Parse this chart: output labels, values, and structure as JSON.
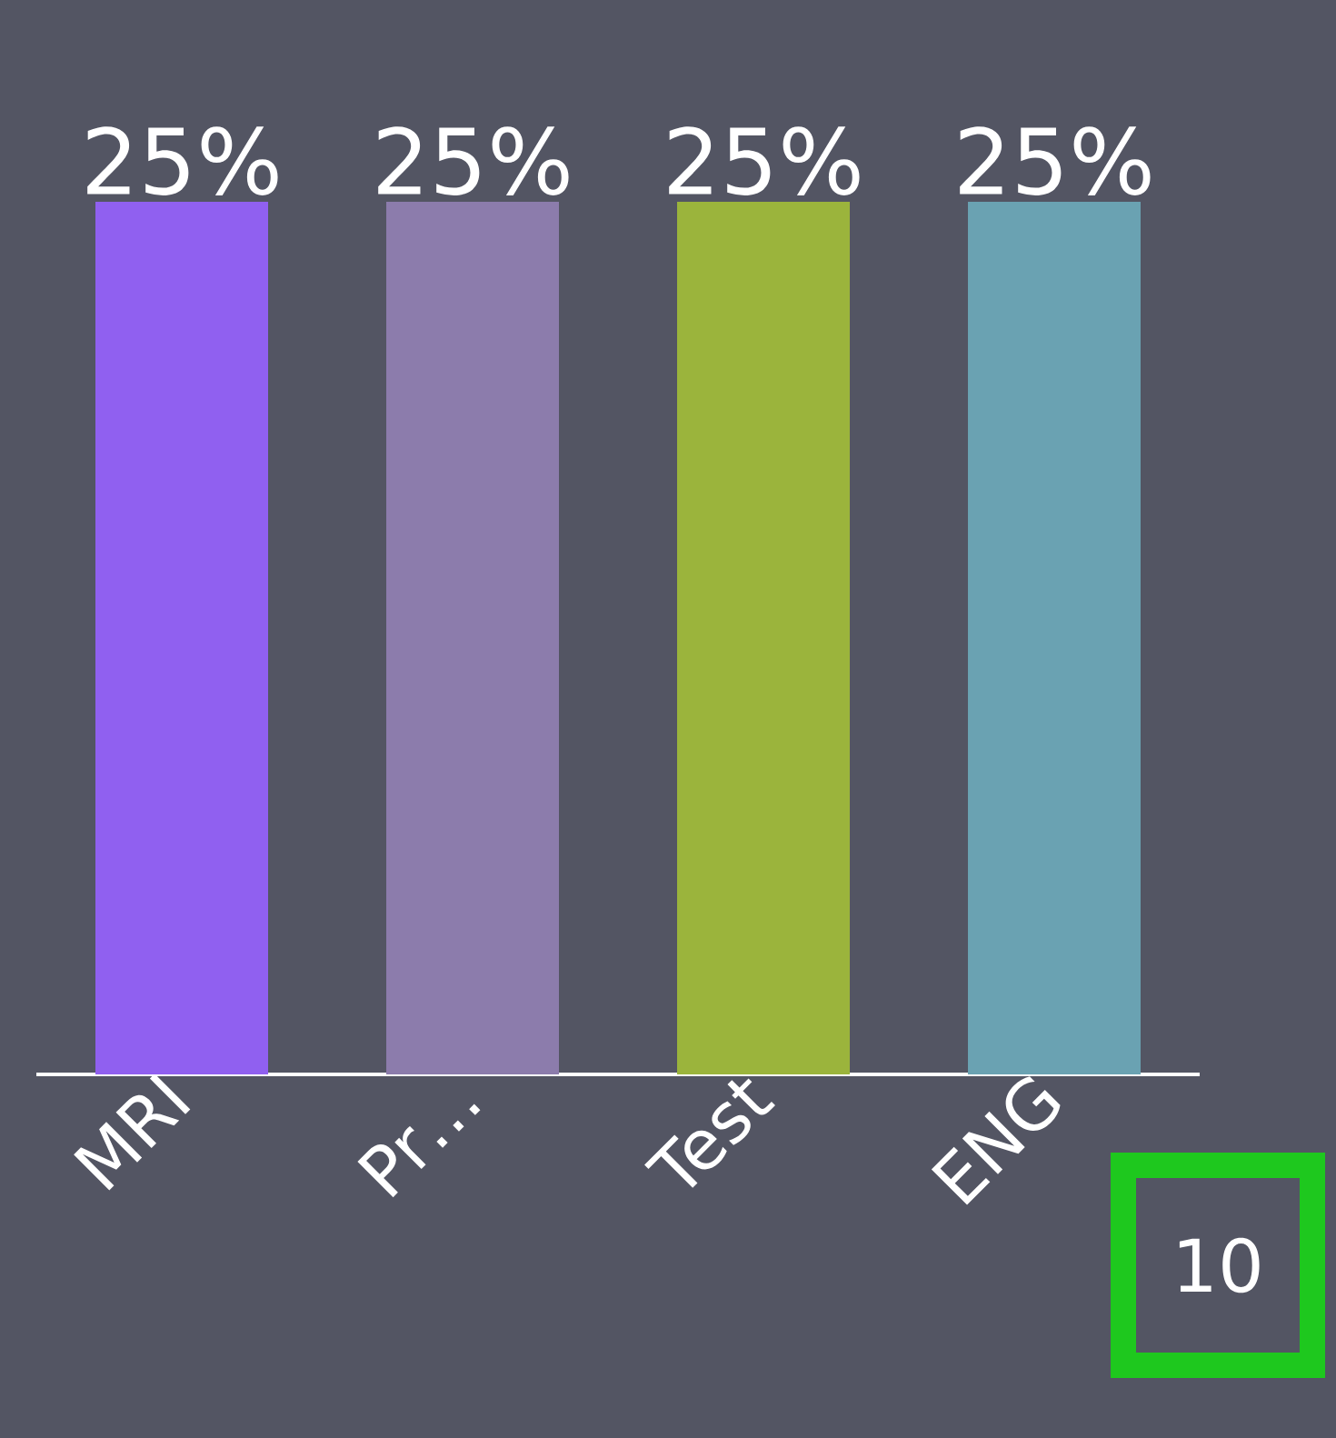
{
  "chart_data": {
    "type": "bar",
    "categories": [
      "MRI",
      "Pr…",
      "Test",
      "ENG"
    ],
    "values": [
      25,
      25,
      25,
      25
    ],
    "colors": [
      "#9060f0",
      "#8c7cac",
      "#9bb43c",
      "#6aa2b2"
    ],
    "value_labels": [
      "25%",
      "25%",
      "25%",
      "25%"
    ],
    "annotations": [
      "10"
    ]
  }
}
